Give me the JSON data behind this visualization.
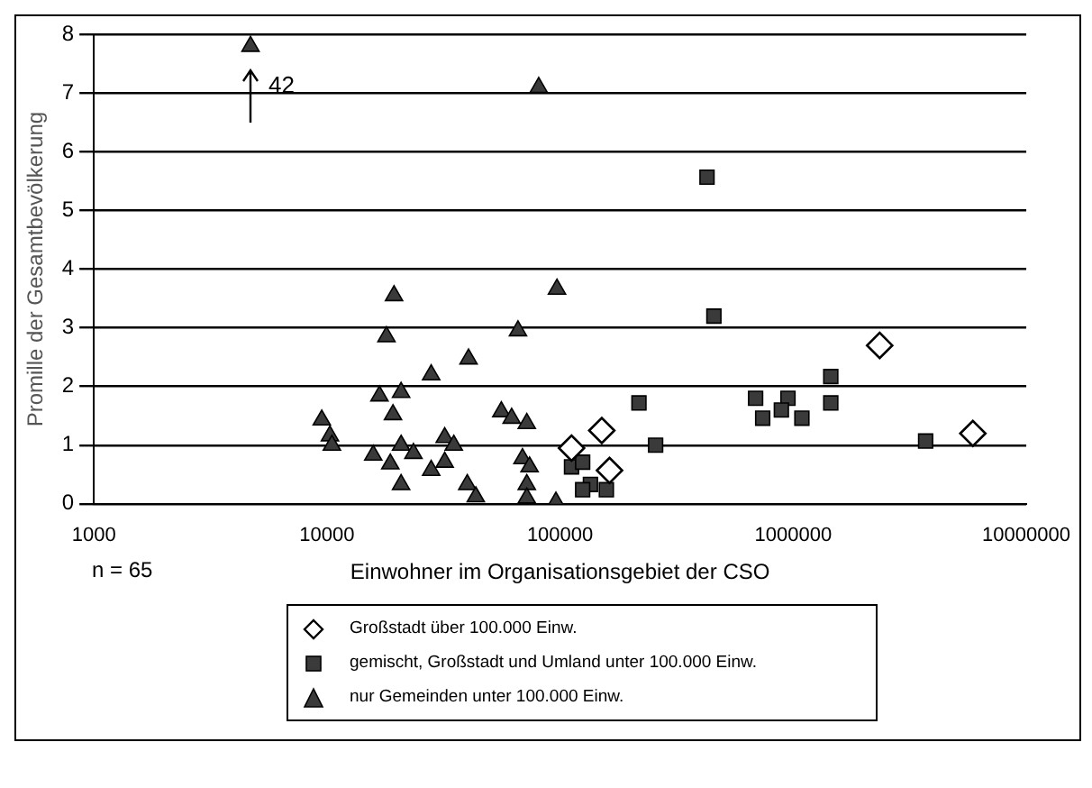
{
  "chart_data": {
    "type": "scatter",
    "xlabel": "Einwohner im Organisationsgebiet der CSO",
    "ylabel": "Promille der Gesamtbevölkerung",
    "log": "x",
    "xlim": [
      1000,
      10000000
    ],
    "xticks": [
      1000,
      10000,
      100000,
      1000000,
      10000000
    ],
    "ylim": [
      0,
      8
    ],
    "yticks": [
      0,
      1,
      2,
      3,
      4,
      5,
      6,
      7,
      8
    ],
    "grid": "y",
    "legend": "bottom",
    "annotations": [
      "42",
      "n = 65"
    ],
    "series": [
      {
        "name": "Großstadt über 100.000 Einw.",
        "color": "#ffffff",
        "marker": "diamond",
        "x": [
          2350000,
          5900000,
          151000,
          112000,
          163000
        ],
        "values": [
          2.7,
          1.2,
          1.25,
          0.95,
          0.57
        ]
      },
      {
        "name": "gemischt, Großstadt und Umland unter 100.000 Einw.",
        "color": "#3a3a3a",
        "marker": "square",
        "x": [
          427000,
          457000,
          218000,
          257000,
          690000,
          740000,
          950000,
          890000,
          1090000,
          1450000,
          1450000,
          3700000,
          112000,
          125000,
          135000,
          158000,
          125000
        ],
        "values": [
          5.57,
          3.2,
          1.72,
          1.0,
          1.8,
          1.46,
          1.8,
          1.6,
          1.46,
          2.17,
          1.72,
          1.07,
          0.63,
          0.71,
          0.33,
          0.24,
          0.24
        ]
      },
      {
        "name": "nur Gemeinden unter 100.000 Einw.",
        "color": "#3a3a3a",
        "marker": "triangle",
        "x": [
          4700,
          9500,
          10300,
          10500,
          19400,
          18000,
          28000,
          40500,
          16800,
          20800,
          19200,
          15800,
          18700,
          20800,
          23500,
          20800,
          28000,
          32000,
          35000,
          32000,
          40000,
          43500,
          56000,
          62000,
          72000,
          66000,
          69000,
          74000,
          72000,
          72000,
          81000,
          97000,
          96000
        ],
        "values": [
          7.8,
          1.43,
          1.16,
          1.0,
          3.55,
          2.85,
          2.2,
          2.47,
          1.84,
          1.9,
          1.52,
          0.83,
          0.68,
          1.0,
          0.86,
          0.33,
          0.57,
          1.13,
          1.0,
          0.71,
          0.33,
          0.12,
          1.57,
          1.46,
          1.37,
          2.95,
          0.77,
          0.63,
          0.33,
          0.1,
          7.1,
          3.66,
          0.03
        ]
      }
    ]
  }
}
